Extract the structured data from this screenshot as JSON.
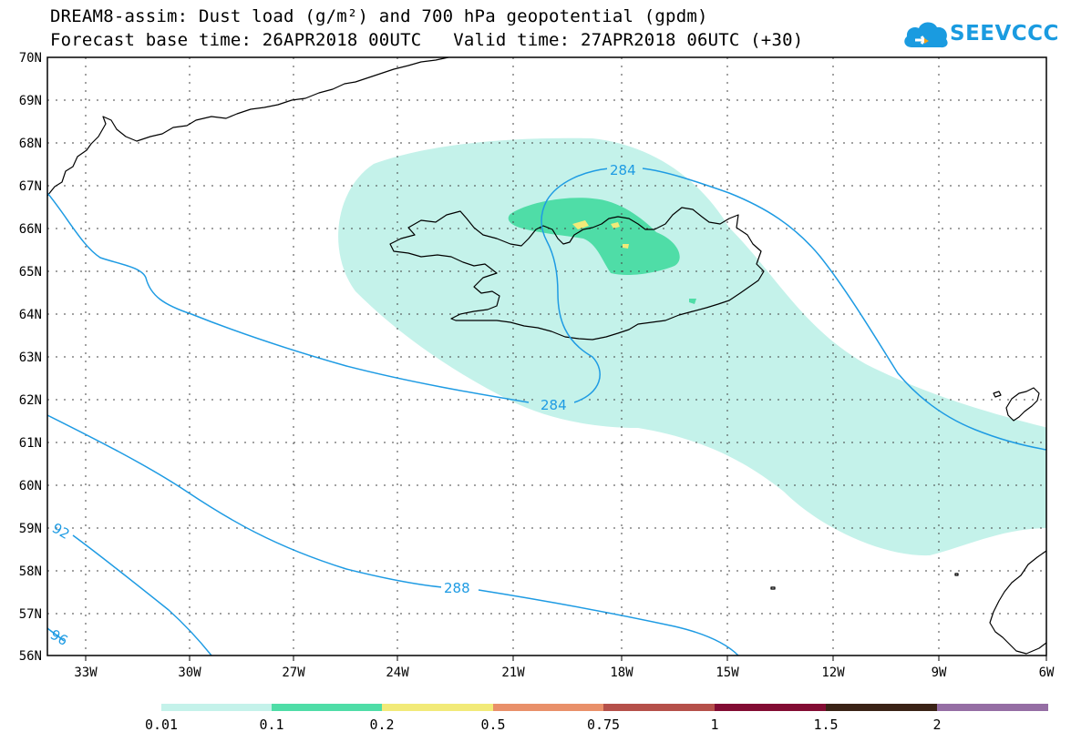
{
  "header": {
    "title_line1": "DREAM8-assim: Dust load (g/m²) and 700 hPa geopotential (gpdm)",
    "title_line2": "Forecast base time: 26APR2018 00UTC   Valid time: 27APR2018 06UTC (+30)"
  },
  "logo": {
    "text": "SEEVCCC",
    "icon": "cloud-icon",
    "color": "#1a9be0"
  },
  "map": {
    "lat_labels": [
      "56N",
      "57N",
      "58N",
      "59N",
      "60N",
      "61N",
      "62N",
      "63N",
      "64N",
      "65N",
      "66N",
      "67N",
      "68N",
      "69N",
      "70N"
    ],
    "lon_labels": [
      "33W",
      "30W",
      "27W",
      "24W",
      "21W",
      "18W",
      "15W",
      "12W",
      "9W",
      "6W"
    ],
    "contour_labels": [
      {
        "text": "284"
      },
      {
        "text": "284"
      },
      {
        "text": "288"
      },
      {
        "text": "92"
      },
      {
        "text": "96"
      }
    ],
    "contour_color": "#1e9be3",
    "dust_colors": {
      "level_0_01": "#c4f2ea",
      "level_0_1": "#4fdda7",
      "level_0_2": "#f2ea78"
    }
  },
  "colorbar": {
    "labels": [
      "0.01",
      "0.1",
      "0.2",
      "0.5",
      "0.75",
      "1",
      "1.5",
      "2"
    ],
    "colors": [
      "#c4f2ea",
      "#4fdda7",
      "#f2ea78",
      "#e9906a",
      "#b5504a",
      "#820c33",
      "#3a2316",
      "#956ea4"
    ]
  }
}
